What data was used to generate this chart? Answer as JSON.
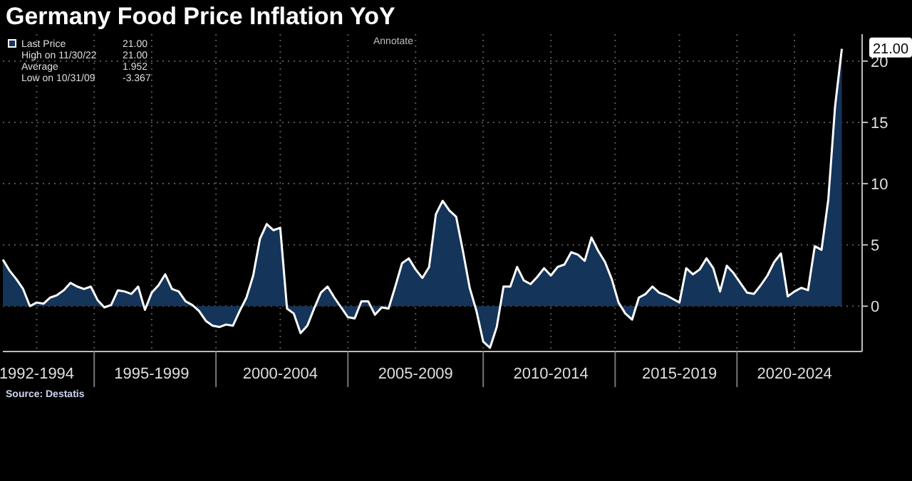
{
  "chart_data": {
    "type": "area",
    "title": "Germany Food Price Inflation YoY",
    "categories": [
      null,
      null,
      null,
      null,
      null,
      "1992-1994",
      null,
      null,
      null,
      null,
      null,
      null,
      null,
      null,
      null,
      null,
      null,
      null,
      null,
      null,
      null,
      null,
      "1995-1999",
      null,
      null,
      null,
      null,
      null,
      null,
      null,
      null,
      null,
      null,
      null,
      null,
      null,
      null,
      null,
      null,
      null,
      null,
      "2000-2004",
      null,
      null,
      null,
      null,
      null,
      null,
      null,
      null,
      null,
      null,
      null,
      null,
      null,
      null,
      null,
      null,
      null,
      null,
      null,
      "2005-2009",
      null,
      null,
      null,
      null,
      null,
      null,
      null,
      null,
      null,
      null,
      null,
      null,
      null,
      null,
      null,
      null,
      null,
      null,
      null,
      "2010-2014",
      null,
      null,
      null,
      null,
      null,
      null,
      null,
      null,
      null,
      null,
      null,
      null,
      null,
      null,
      null,
      null,
      null,
      null,
      "2015-2019",
      null,
      null,
      null,
      null,
      null,
      null,
      null,
      null,
      null,
      null,
      null,
      null,
      null,
      null,
      null,
      null,
      "2020-2024",
      null,
      null,
      null,
      null,
      null,
      null,
      null,
      null,
      null,
      null
    ],
    "ylim": [
      -3.7,
      22.2
    ],
    "yticks": [
      0,
      5,
      10,
      15,
      20
    ],
    "grid": true,
    "legend": "top left",
    "line_style": "solid",
    "annotations": [
      "21.00",
      "High on 11/30/22 21.00",
      "Average 1.952",
      "Low on 10/31/09 -3.367",
      "21.00",
      "Annotate",
      "Source: Destatis"
    ],
    "series": [
      {
        "name": "Last Price",
        "color": "#15345a",
        "values": [
          3.8,
          2.9,
          2.2,
          1.4,
          0,
          0.3,
          0.2,
          0.7,
          0.9,
          1.3,
          1.9,
          1.6,
          1.4,
          1.6,
          0.5,
          -0.1,
          0.1,
          1.3,
          1.2,
          1.0,
          1.6,
          -0.3,
          1.1,
          1.7,
          2.6,
          1.4,
          1.2,
          0.4,
          0.1,
          -0.4,
          -1.2,
          -1.6,
          -1.7,
          -1.5,
          -1.6,
          -0.4,
          0.7,
          2.5,
          5.5,
          6.7,
          6.2,
          6.4,
          -0.2,
          -0.6,
          -2.2,
          -1.6,
          -0.2,
          1.1,
          1.6,
          0.7,
          -0.1,
          -0.9,
          -1.0,
          0.4,
          0.4,
          -0.7,
          -0.1,
          -0.2,
          1.6,
          3.5,
          3.9,
          3.0,
          2.3,
          3.2,
          7.5,
          8.6,
          7.8,
          7.3,
          4.5,
          1.5,
          -0.4,
          -2.9,
          -3.4,
          -1.7,
          1.6,
          1.6,
          3.2,
          2.1,
          1.8,
          2.4,
          3.1,
          2.5,
          3.2,
          3.4,
          4.4,
          4.2,
          3.7,
          5.6,
          4.5,
          3.6,
          2.2,
          0.3,
          -0.6,
          -1.1,
          0.7,
          1.0,
          1.6,
          1.1,
          0.9,
          0.6,
          0.3,
          3.1,
          2.6,
          3.0,
          3.9,
          3.1,
          1.2,
          3.3,
          2.7,
          1.9,
          1.1,
          1.0,
          1.7,
          2.5,
          3.6,
          4.3,
          0.8,
          1.2,
          1.5,
          1.3,
          4.9,
          4.6,
          8.7,
          16.3,
          21.0,
          null,
          null,
          null
        ]
      }
    ]
  }
}
